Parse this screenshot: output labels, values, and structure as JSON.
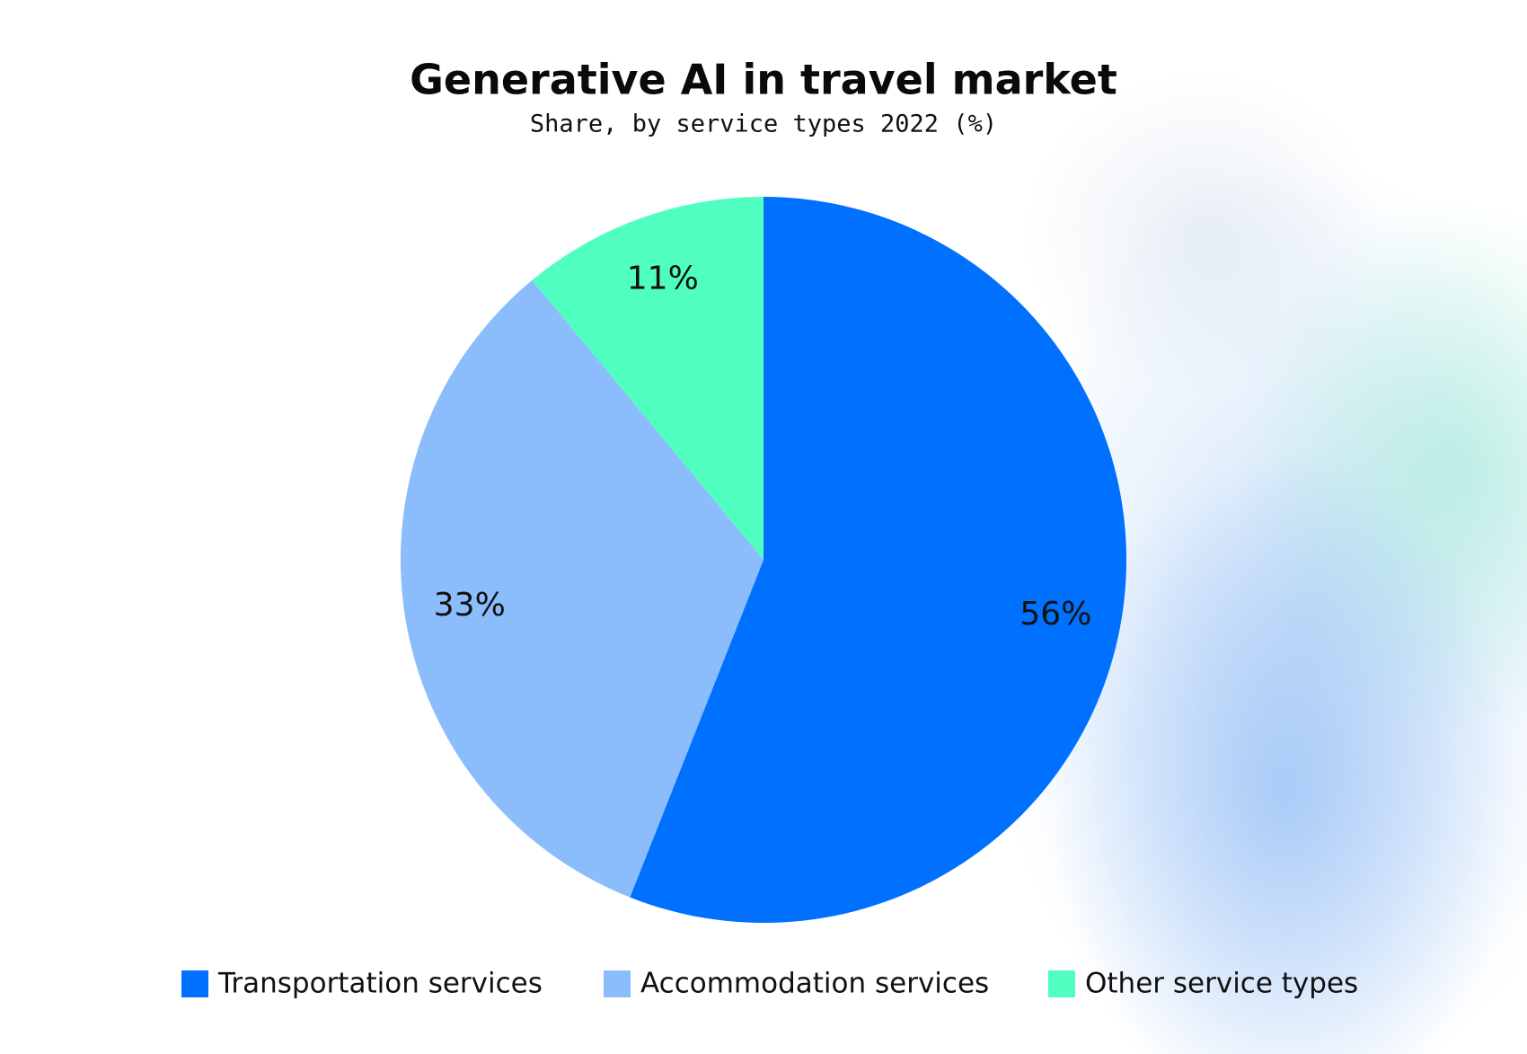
{
  "chart_data": {
    "type": "pie",
    "title": "Generative AI in travel market",
    "subtitle": "Share, by service types 2022 (%)",
    "categories": [
      "Transportation services",
      "Accommodation services",
      "Other service types"
    ],
    "values": [
      56,
      33,
      11
    ],
    "value_labels": [
      "56%",
      "33%",
      "11%"
    ],
    "colors": [
      "#0070ff",
      "#8bbdfc",
      "#50ffc0"
    ]
  }
}
